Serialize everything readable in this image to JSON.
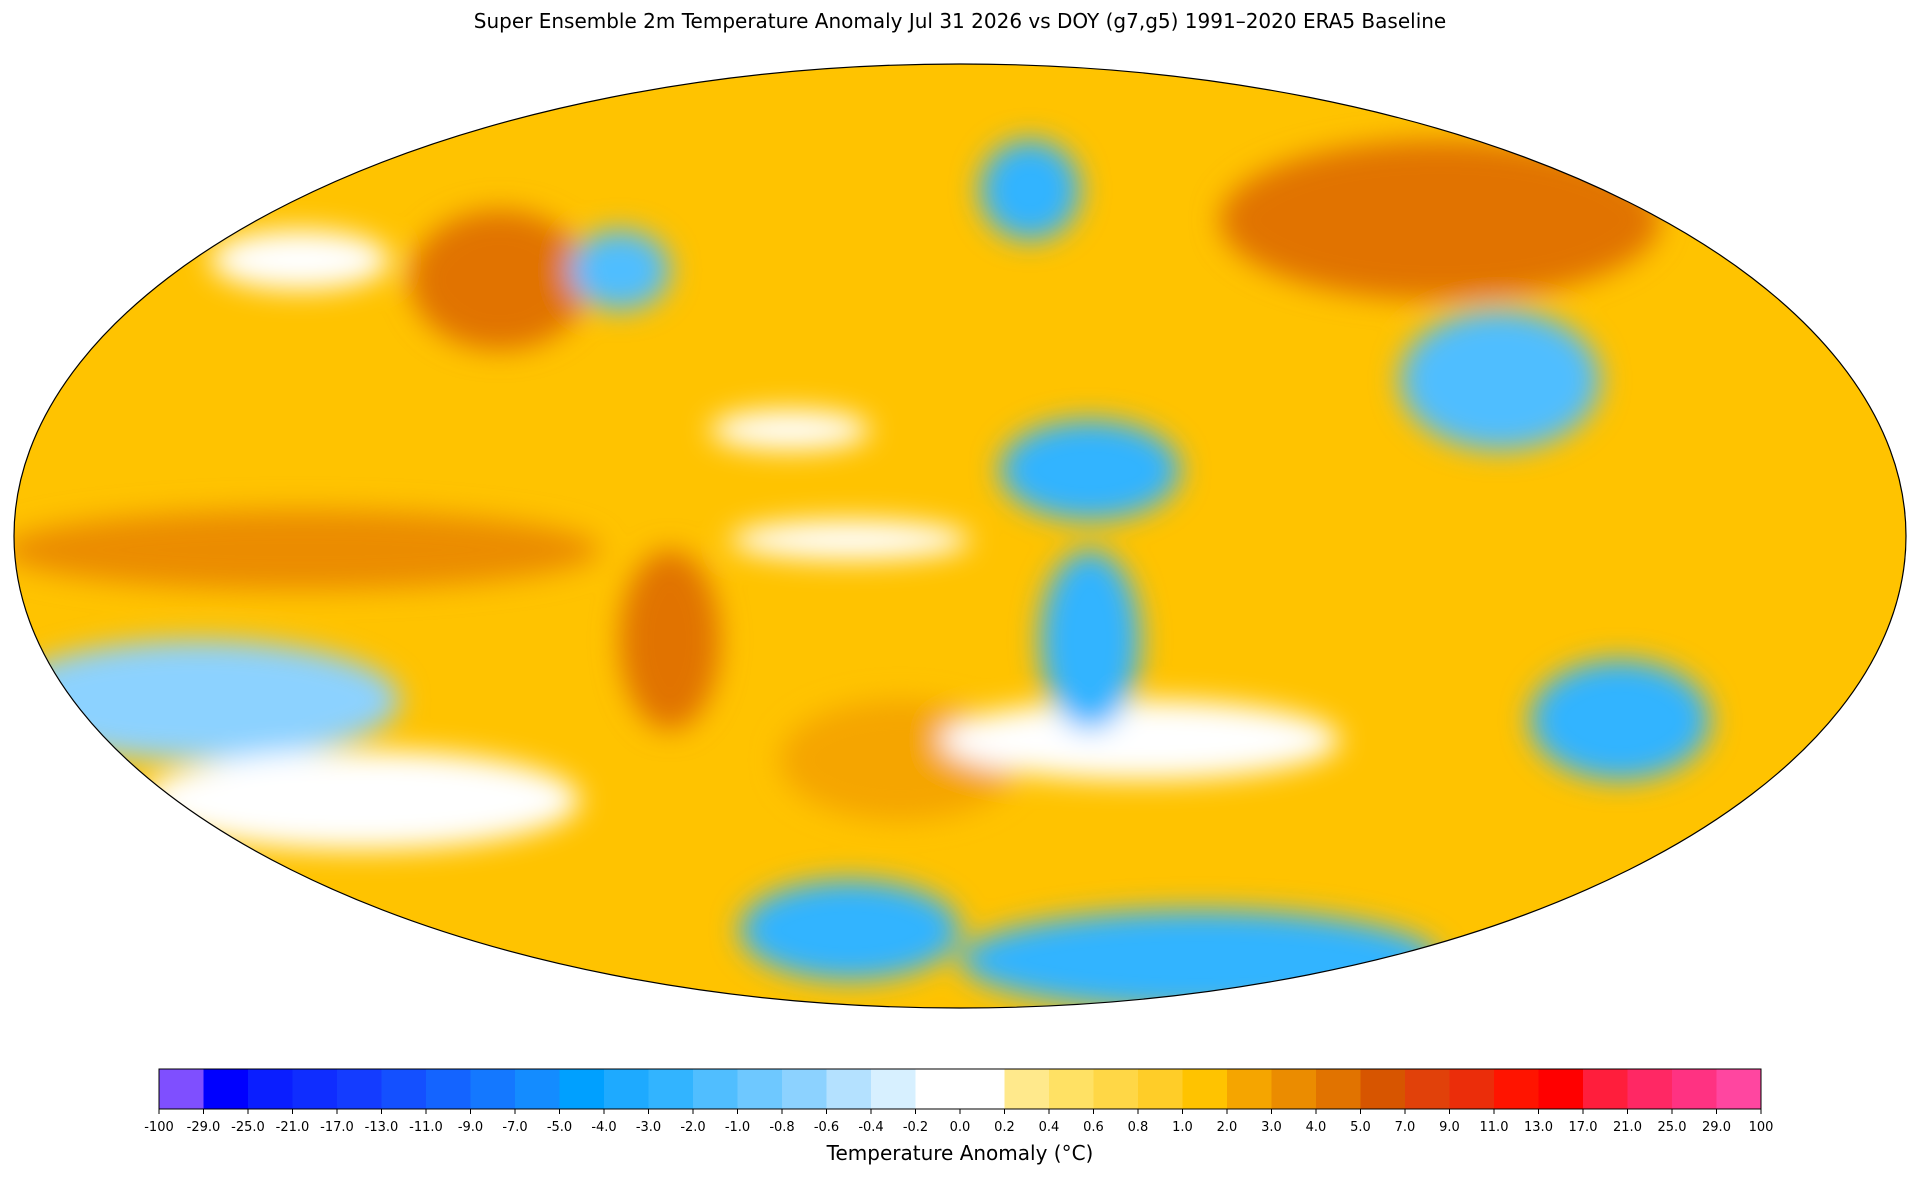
{
  "title": "Super Ensemble 2m Temperature Anomaly  Jul 31 2026  vs DOY (g7,g5) 1991–2020 ERA5 Baseline",
  "colorbar": {
    "label": "Temperature Anomaly (°C)",
    "ticks": [
      -100,
      {
        "value": -29,
        "label": "-29.0"
      },
      {
        "value": -25,
        "label": "-25.0"
      },
      {
        "value": -21,
        "label": "-21.0"
      },
      {
        "value": -17,
        "label": "-17.0"
      },
      {
        "value": -13,
        "label": "-13.0"
      },
      {
        "value": -11,
        "label": "-11.0"
      },
      {
        "value": -9,
        "label": "-9.0"
      },
      {
        "value": -7,
        "label": "-7.0"
      },
      {
        "value": -5,
        "label": "-5.0"
      },
      {
        "value": -4,
        "label": "-4.0"
      },
      {
        "value": -3,
        "label": "-3.0"
      },
      {
        "value": -2,
        "label": "-2.0"
      },
      {
        "value": -1,
        "label": "-1.0"
      },
      -0.8,
      -0.6,
      -0.4,
      -0.2,
      {
        "value": 0,
        "label": "0.0"
      },
      0.2,
      0.4,
      0.6,
      0.8,
      {
        "value": 1,
        "label": "1.0"
      },
      {
        "value": 2,
        "label": "2.0"
      },
      {
        "value": 3,
        "label": "3.0"
      },
      {
        "value": 4,
        "label": "4.0"
      },
      {
        "value": 5,
        "label": "5.0"
      },
      {
        "value": 7,
        "label": "7.0"
      },
      {
        "value": 9,
        "label": "9.0"
      },
      {
        "value": 11,
        "label": "11.0"
      },
      {
        "value": 13,
        "label": "13.0"
      },
      {
        "value": 17,
        "label": "17.0"
      },
      {
        "value": 21,
        "label": "21.0"
      },
      {
        "value": 25,
        "label": "25.0"
      },
      {
        "value": 29,
        "label": "29.0"
      },
      100
    ],
    "colors": [
      "#7f4fff",
      "#0000ff",
      "#0a1eff",
      "#0f2dff",
      "#143cff",
      "#1450ff",
      "#1464ff",
      "#1478ff",
      "#148cff",
      "#00a0ff",
      "#1eaaff",
      "#32b4ff",
      "#50beff",
      "#6ec8ff",
      "#8cd2ff",
      "#b4e1ff",
      "#d7f0ff",
      "#ffffff",
      "#ffffff",
      "#ffe98c",
      "#ffe164",
      "#ffd746",
      "#ffcd28",
      "#ffc300",
      "#f5a500",
      "#eb8c00",
      "#e17300",
      "#d75500",
      "#e1410a",
      "#eb2d0a",
      "#ff1400",
      "#ff0000",
      "#ff1e3c",
      "#ff2864",
      "#ff3282",
      "#ff46a0"
    ]
  }
}
